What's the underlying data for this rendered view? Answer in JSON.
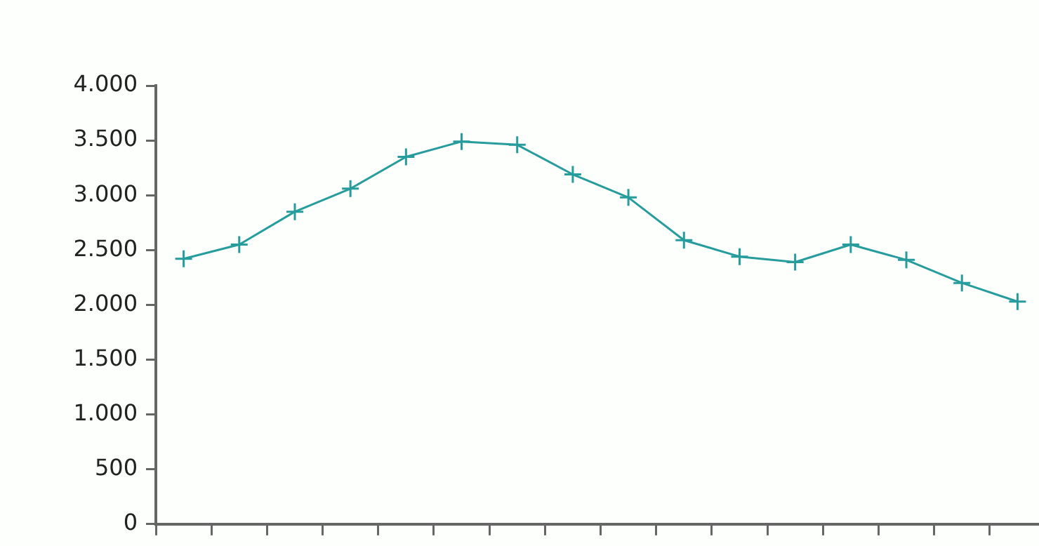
{
  "chart_data": {
    "type": "line",
    "categories": [
      null,
      null,
      null,
      null,
      null,
      null,
      null,
      null,
      null,
      null,
      null,
      null,
      null,
      null,
      null,
      null
    ],
    "series": [
      {
        "color": "#279c9c",
        "values": [
          2420,
          2550,
          2850,
          3060,
          3350,
          3490,
          3460,
          3190,
          2980,
          2590,
          2440,
          2390,
          2550,
          2410,
          2200,
          2030
        ]
      }
    ],
    "ylim": [
      0,
      4000
    ],
    "yticks": [
      {
        "value": 0,
        "label": "0"
      },
      {
        "value": 500,
        "label": "500"
      },
      {
        "value": 1000,
        "label": "1.000"
      },
      {
        "value": 1500,
        "label": "1.500"
      },
      {
        "value": 2000,
        "label": "2.000"
      },
      {
        "value": 2500,
        "label": "2.500"
      },
      {
        "value": 3000,
        "label": "3.000"
      },
      {
        "value": 3500,
        "label": "3.500"
      },
      {
        "value": 4000,
        "label": "4.000"
      }
    ],
    "grid": false,
    "legend": false,
    "marker": "cross",
    "line_style": "solid",
    "tick_labels": "y"
  }
}
